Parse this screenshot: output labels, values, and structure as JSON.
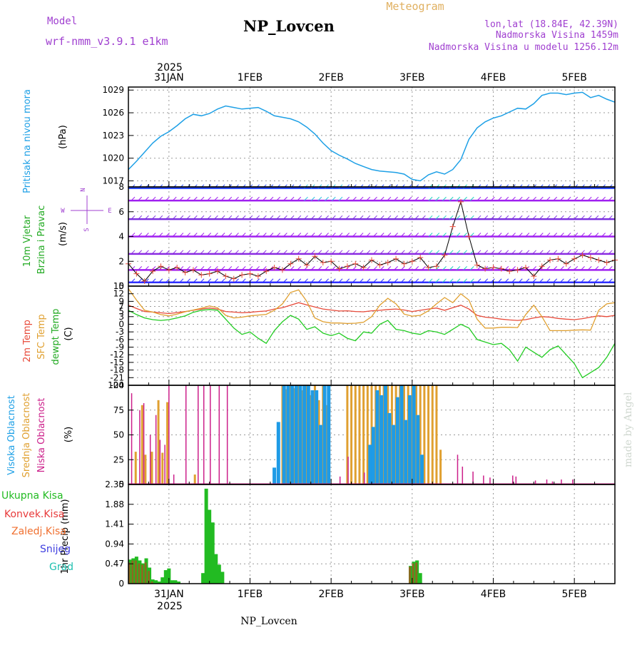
{
  "header": {
    "model_label": "Model",
    "model_name": "wrf-nmm_v3.9.1 e1km",
    "title": "NP_Lovcen",
    "subtitle": "Meteogram",
    "coords": "lon,lat (18.84E, 42.39N)",
    "altitude": "Nadmorska Visina 1459m",
    "model_altitude": "Nadmorska Visina u modelu 1256.12m",
    "top_year": "2025",
    "footer_title": "NP_Lovcen",
    "bottom_year": "2025",
    "watermark": "made by Angel"
  },
  "colors": {
    "pressure": "#1ea0e6",
    "wind_label": "#22aa22",
    "t2m": "#e84a3a",
    "tsfc": "#e0a030",
    "dewpt": "#22cc22",
    "cloud_high": "#1e9be6",
    "cloud_mid": "#e0a030",
    "cloud_low": "#cc1f8a",
    "precip_total": "#22bb22",
    "precip_conv": "#e83a3a",
    "precip_frz": "#f07030",
    "precip_snow": "#4040e0",
    "precip_hail": "#20c0b0",
    "purple": "#a040d0",
    "grid": "#999999"
  },
  "chart_data": [
    {
      "type": "line",
      "panel": "pressure",
      "ylabel_lines": [
        "Pritisak na nivou mora",
        "(hPa)"
      ],
      "x_ticks": [
        "31JAN",
        "1FEB",
        "2FEB",
        "3FEB",
        "4FEB",
        "5FEB"
      ],
      "x_domain": [
        -0.5,
        5.5
      ],
      "yticks": [
        1017,
        1020,
        1023,
        1026,
        1029
      ],
      "ylim": [
        1016.2,
        1029.4
      ],
      "series": [
        {
          "x": [
            -0.5,
            -0.4,
            -0.3,
            -0.2,
            -0.1,
            0,
            0.1,
            0.2,
            0.3,
            0.4,
            0.5,
            0.6,
            0.7,
            0.8,
            0.9,
            1.0,
            1.1,
            1.2,
            1.3,
            1.4,
            1.5,
            1.6,
            1.7,
            1.8,
            1.9,
            2.0,
            2.1,
            2.2,
            2.3,
            2.4,
            2.5,
            2.6,
            2.7,
            2.8,
            2.9,
            3.0,
            3.1,
            3.2,
            3.3,
            3.4,
            3.5,
            3.6,
            3.7,
            3.8,
            3.9,
            4.0,
            4.1,
            4.2,
            4.3,
            4.4,
            4.5,
            4.6,
            4.7,
            4.8,
            4.9,
            5.0,
            5.1,
            5.2,
            5.3,
            5.4,
            5.5
          ],
          "values": [
            1018.5,
            1019.6,
            1020.8,
            1022.0,
            1022.9,
            1023.5,
            1024.3,
            1025.2,
            1025.8,
            1025.6,
            1025.9,
            1026.5,
            1026.9,
            1026.7,
            1026.5,
            1026.6,
            1026.7,
            1026.2,
            1025.6,
            1025.4,
            1025.2,
            1024.8,
            1024.1,
            1023.2,
            1022.0,
            1021.0,
            1020.4,
            1019.9,
            1019.3,
            1018.9,
            1018.5,
            1018.3,
            1018.2,
            1018.1,
            1017.9,
            1017.2,
            1017.0,
            1017.8,
            1018.2,
            1017.9,
            1018.5,
            1019.8,
            1022.5,
            1024.0,
            1024.8,
            1025.3,
            1025.6,
            1026.1,
            1026.6,
            1026.5,
            1027.2,
            1028.3,
            1028.6,
            1028.6,
            1028.4,
            1028.6,
            1028.7,
            1028.0,
            1028.3,
            1027.8,
            1027.4
          ]
        }
      ]
    },
    {
      "type": "line",
      "panel": "wind",
      "ylabel_lines": [
        "10m Vjetar",
        "Brzina i Pravac",
        "(m/s)"
      ],
      "compass_labels": [
        "N",
        "W",
        "E",
        "S"
      ],
      "yticks": [
        0,
        2,
        4,
        6,
        8
      ],
      "ylim": [
        0,
        8
      ],
      "barb_levels": [
        0.3,
        1.3,
        2.6,
        4.0,
        5.4,
        6.9,
        7.9
      ],
      "series": [
        {
          "name": "speed",
          "x": [
            -0.5,
            -0.4,
            -0.3,
            -0.2,
            -0.1,
            0,
            0.1,
            0.2,
            0.3,
            0.4,
            0.5,
            0.6,
            0.7,
            0.8,
            0.9,
            1.0,
            1.1,
            1.2,
            1.3,
            1.4,
            1.5,
            1.6,
            1.7,
            1.8,
            1.9,
            2.0,
            2.1,
            2.2,
            2.3,
            2.4,
            2.5,
            2.6,
            2.7,
            2.8,
            2.9,
            3.0,
            3.1,
            3.2,
            3.3,
            3.4,
            3.5,
            3.6,
            3.7,
            3.8,
            3.9,
            4.0,
            4.1,
            4.2,
            4.3,
            4.4,
            4.5,
            4.6,
            4.7,
            4.8,
            4.9,
            5.0,
            5.1,
            5.2,
            5.3,
            5.4,
            5.5
          ],
          "values": [
            1.8,
            1.0,
            0.4,
            1.2,
            1.6,
            1.3,
            1.5,
            1.1,
            1.3,
            0.9,
            1.0,
            1.2,
            0.8,
            0.6,
            0.9,
            1.0,
            0.8,
            1.2,
            1.5,
            1.3,
            1.8,
            2.2,
            1.7,
            2.4,
            1.9,
            2.0,
            1.4,
            1.6,
            1.8,
            1.5,
            2.1,
            1.7,
            1.9,
            2.2,
            1.8,
            2.0,
            2.3,
            1.5,
            1.6,
            2.5,
            4.8,
            6.8,
            4.0,
            1.7,
            1.4,
            1.5,
            1.4,
            1.2,
            1.3,
            1.5,
            0.8,
            1.6,
            2.1,
            2.2,
            1.8,
            2.2,
            2.5,
            2.3,
            2.1,
            1.9,
            2.1
          ]
        }
      ]
    },
    {
      "type": "line",
      "panel": "temperature",
      "ylabel_lines": [
        "2m Temp",
        "SFC Temp",
        "dewpt Temp",
        "(C)"
      ],
      "yticks": [
        -24,
        -21,
        -18,
        -15,
        -12,
        -9,
        -6,
        -3,
        0,
        3,
        5,
        7,
        9,
        12,
        15
      ],
      "ylim": [
        -24,
        15
      ],
      "series": [
        {
          "name": "2m Temp",
          "x": [
            -0.5,
            -0.4,
            -0.3,
            -0.2,
            -0.1,
            0,
            0.1,
            0.2,
            0.3,
            0.4,
            0.5,
            0.6,
            0.7,
            0.8,
            0.9,
            1.0,
            1.1,
            1.2,
            1.3,
            1.4,
            1.5,
            1.6,
            1.7,
            1.8,
            1.9,
            2.0,
            2.1,
            2.2,
            2.3,
            2.4,
            2.5,
            2.6,
            2.7,
            2.8,
            2.9,
            3.0,
            3.1,
            3.2,
            3.3,
            3.4,
            3.5,
            3.6,
            3.7,
            3.8,
            3.9,
            4.0,
            4.1,
            4.2,
            4.3,
            4.4,
            4.5,
            4.6,
            4.7,
            4.8,
            4.9,
            5.0,
            5.1,
            5.2,
            5.3,
            5.4,
            5.5
          ],
          "values": [
            7.5,
            6.2,
            5.0,
            4.8,
            4.5,
            4.2,
            4.6,
            5.0,
            5.5,
            6.0,
            6.4,
            6.0,
            5.0,
            4.8,
            4.5,
            4.7,
            5.0,
            5.2,
            6.0,
            6.5,
            7.5,
            8.5,
            7.6,
            6.8,
            6.0,
            5.6,
            5.2,
            5.3,
            5.0,
            4.9,
            5.3,
            5.5,
            5.8,
            6.0,
            5.6,
            5.0,
            5.5,
            6.0,
            6.4,
            5.5,
            6.5,
            7.5,
            6.0,
            3.5,
            2.8,
            2.5,
            2.0,
            1.7,
            1.5,
            1.8,
            2.5,
            3.0,
            2.8,
            2.3,
            2.0,
            1.8,
            2.2,
            2.8,
            3.3,
            3.0,
            3.5
          ]
        },
        {
          "name": "SFC Temp",
          "x": [
            -0.5,
            -0.4,
            -0.3,
            -0.2,
            -0.1,
            0,
            0.1,
            0.2,
            0.3,
            0.4,
            0.5,
            0.6,
            0.7,
            0.8,
            0.9,
            1.0,
            1.1,
            1.2,
            1.3,
            1.4,
            1.5,
            1.6,
            1.7,
            1.8,
            1.9,
            2.0,
            2.1,
            2.2,
            2.3,
            2.4,
            2.5,
            2.6,
            2.7,
            2.8,
            2.9,
            3.0,
            3.1,
            3.2,
            3.3,
            3.4,
            3.5,
            3.6,
            3.7,
            3.8,
            3.9,
            4.0,
            4.1,
            4.2,
            4.3,
            4.4,
            4.5,
            4.6,
            4.7,
            4.8,
            4.9,
            5.0,
            5.1,
            5.2,
            5.3,
            5.4,
            5.5
          ],
          "values": [
            14.0,
            9.5,
            5.5,
            4.8,
            3.8,
            3.3,
            4.0,
            4.9,
            5.6,
            6.3,
            7.2,
            6.5,
            3.5,
            2.5,
            2.8,
            3.3,
            3.6,
            3.9,
            5.5,
            8.0,
            12.5,
            13.5,
            9.0,
            2.5,
            1.0,
            0.5,
            0.5,
            0.3,
            0.4,
            0.8,
            3.0,
            7.5,
            10.2,
            8.0,
            4.0,
            3.2,
            3.5,
            5.3,
            8.0,
            10.5,
            8.5,
            12.0,
            9.5,
            2.0,
            -1.5,
            -1.5,
            -1.2,
            -1.2,
            -1.3,
            3.8,
            7.5,
            3.0,
            -2.5,
            -2.5,
            -2.5,
            -2.3,
            -2.2,
            -2.3,
            5.5,
            8.0,
            8.5
          ]
        },
        {
          "name": "dewpt Temp",
          "x": [
            -0.5,
            -0.4,
            -0.3,
            -0.2,
            -0.1,
            0,
            0.1,
            0.2,
            0.3,
            0.4,
            0.5,
            0.6,
            0.7,
            0.8,
            0.9,
            1.0,
            1.1,
            1.2,
            1.3,
            1.4,
            1.5,
            1.6,
            1.7,
            1.8,
            1.9,
            2.0,
            2.1,
            2.2,
            2.3,
            2.4,
            2.5,
            2.6,
            2.7,
            2.8,
            2.9,
            3.0,
            3.1,
            3.2,
            3.3,
            3.4,
            3.5,
            3.6,
            3.7,
            3.8,
            3.9,
            4.0,
            4.1,
            4.2,
            4.3,
            4.4,
            4.5,
            4.6,
            4.7,
            4.8,
            4.9,
            5.0,
            5.1,
            5.2,
            5.3,
            5.4,
            5.5
          ],
          "values": [
            5.5,
            3.8,
            2.5,
            1.8,
            1.5,
            1.8,
            2.5,
            3.3,
            4.7,
            5.5,
            5.8,
            5.5,
            2.0,
            -1.5,
            -4.0,
            -3.0,
            -5.5,
            -7.5,
            -2.5,
            1.0,
            3.5,
            2.0,
            -2.0,
            -1.0,
            -3.5,
            -4.5,
            -3.5,
            -5.5,
            -6.5,
            -3.0,
            -3.5,
            0.0,
            1.5,
            -2.0,
            -2.5,
            -3.5,
            -4.0,
            -2.5,
            -3.0,
            -4.0,
            -2.0,
            0.0,
            -1.5,
            -6.0,
            -7.0,
            -8.0,
            -7.5,
            -10.0,
            -14.5,
            -9.0,
            -11.0,
            -13.0,
            -10.0,
            -8.5,
            -12.0,
            -15.5,
            -21.0,
            -19.0,
            -17.0,
            -13.0,
            -7.5
          ]
        }
      ]
    },
    {
      "type": "bar",
      "panel": "clouds",
      "ylabel_lines": [
        "Visoka Oblacnost",
        "Srednja Oblacnost",
        "Niska Oblacnost",
        "(%)"
      ],
      "yticks": [
        0,
        25,
        50,
        75,
        100
      ],
      "ylim": [
        0,
        100
      ],
      "series": [
        {
          "name": "Niska Oblacnost",
          "x": [
            -0.46,
            -0.36,
            -0.31,
            -0.23,
            -0.16,
            -0.11,
            -0.05,
            0.0,
            0.06,
            0.21,
            0.36,
            0.43,
            0.51,
            0.62,
            0.72,
            2.11,
            2.21,
            2.41,
            3.56,
            3.62,
            3.75,
            3.88,
            3.96,
            4.24,
            4.28,
            4.52,
            4.66,
            4.73,
            4.84,
            4.98
          ],
          "values": [
            92,
            75,
            82,
            50,
            70,
            45,
            40,
            100,
            10,
            100,
            100,
            100,
            100,
            100,
            100,
            8,
            28,
            12,
            30,
            18,
            13,
            9,
            7,
            9,
            8,
            4,
            5,
            3,
            5,
            5
          ]
        },
        {
          "name": "Srednja Oblacnost",
          "x": [
            -0.41,
            -0.33,
            -0.29,
            -0.21,
            -0.13,
            -0.08,
            -0.02,
            0.32,
            1.4,
            1.45,
            1.5,
            1.55,
            1.6,
            1.65,
            1.7,
            1.75,
            1.8,
            1.85,
            1.9,
            1.95,
            2.2,
            2.25,
            2.3,
            2.35,
            2.4,
            2.45,
            2.5,
            2.55,
            2.6,
            2.65,
            2.7,
            2.75,
            2.8,
            2.85,
            2.9,
            2.95,
            3.0,
            3.05,
            3.1,
            3.15,
            3.2,
            3.25,
            3.3,
            3.35
          ],
          "values": [
            33,
            80,
            30,
            33,
            85,
            32,
            83,
            10,
            100,
            96,
            100,
            97,
            100,
            95,
            100,
            90,
            100,
            85,
            100,
            80,
            100,
            100,
            100,
            100,
            100,
            100,
            100,
            100,
            100,
            100,
            100,
            100,
            100,
            100,
            100,
            100,
            100,
            100,
            100,
            100,
            100,
            100,
            100,
            35
          ]
        },
        {
          "name": "Visoka Oblacnost",
          "x": [
            1.3,
            1.35,
            1.42,
            1.47,
            1.52,
            1.57,
            1.62,
            1.67,
            1.72,
            1.77,
            1.82,
            1.87,
            1.92,
            1.97,
            2.48,
            2.52,
            2.57,
            2.62,
            2.67,
            2.72,
            2.77,
            2.82,
            2.87,
            2.92,
            2.97,
            3.02,
            3.07,
            3.12
          ],
          "values": [
            17,
            63,
            100,
            100,
            100,
            100,
            100,
            100,
            100,
            95,
            95,
            60,
            100,
            100,
            40,
            58,
            95,
            90,
            100,
            72,
            60,
            88,
            100,
            65,
            90,
            100,
            70,
            30
          ]
        }
      ]
    },
    {
      "type": "bar",
      "panel": "precip",
      "ylabel_lines": [
        "1hr Precip (mm)"
      ],
      "legend_lines": [
        "Ukupna Kisa",
        "Konvek.Kisa",
        "Zaledj.Kisa",
        "Snijeg",
        "Grad"
      ],
      "x_ticks": [
        "31JAN",
        "1FEB",
        "2FEB",
        "3FEB",
        "4FEB",
        "5FEB"
      ],
      "yticks": [
        "0",
        "0.47",
        "0.94",
        "1.41",
        "1.88",
        "2.35"
      ],
      "ylim": [
        0,
        2.35
      ],
      "series": [
        {
          "name": "Ukupna Kisa",
          "x": [
            -0.48,
            -0.44,
            -0.4,
            -0.36,
            -0.32,
            -0.28,
            -0.24,
            -0.2,
            -0.16,
            -0.12,
            -0.08,
            -0.04,
            0.0,
            0.04,
            0.08,
            0.12,
            0.42,
            0.46,
            0.5,
            0.54,
            0.58,
            0.62,
            0.66,
            2.98,
            3.02,
            3.06,
            3.1
          ],
          "values": [
            0.57,
            0.6,
            0.64,
            0.55,
            0.48,
            0.6,
            0.38,
            0.1,
            0.08,
            0.05,
            0.15,
            0.32,
            0.36,
            0.08,
            0.08,
            0.05,
            0.25,
            2.25,
            1.75,
            1.45,
            0.7,
            0.45,
            0.28,
            0.42,
            0.52,
            0.55,
            0.25
          ]
        },
        {
          "name": "Konvek.Kisa",
          "x": [
            -0.48,
            -0.44,
            -0.4,
            -0.36,
            -0.32,
            -0.28,
            -0.24,
            -0.2,
            2.98,
            3.02,
            3.06
          ],
          "values": [
            0.5,
            0.55,
            0.55,
            0.48,
            0.45,
            0.5,
            0.3,
            0.05,
            0.4,
            0.48,
            0.5
          ]
        }
      ]
    }
  ]
}
